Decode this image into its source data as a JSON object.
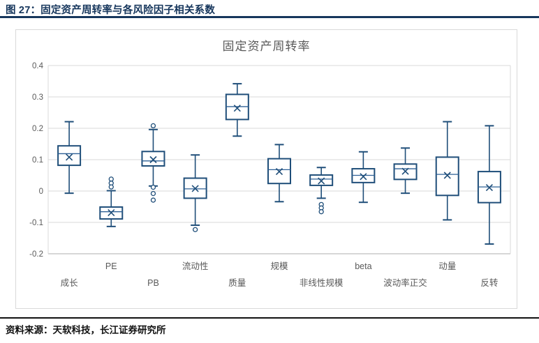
{
  "header": {
    "title": "图 27：固定资产周转率与各风险因子相关系数"
  },
  "footer": {
    "source_label": "资料来源：",
    "source_text": "天软科技，长江证券研究所"
  },
  "chart_data": {
    "type": "boxplot",
    "title": "固定资产周转率",
    "categories": [
      "成长",
      "PE",
      "PB",
      "流动性",
      "质量",
      "规模",
      "非线性规模",
      "beta",
      "波动率正交",
      "动量",
      "反转"
    ],
    "ylim": [
      -0.2,
      0.4
    ],
    "yticks": [
      "0.4",
      "0.3",
      "0.2",
      "0.1",
      "0",
      "-0.1",
      "-0.2"
    ],
    "ytick_values": [
      0.4,
      0.3,
      0.2,
      0.1,
      0,
      -0.1,
      -0.2
    ],
    "grid": "horizontal",
    "legend": "none",
    "boxes": [
      {
        "category": "成长",
        "label_row": 2,
        "low": -0.007,
        "q1": 0.082,
        "median": 0.119,
        "q3": 0.144,
        "high": 0.221,
        "mean": 0.108,
        "outliers": []
      },
      {
        "category": "PE",
        "label_row": 1,
        "low": -0.113,
        "q1": -0.089,
        "median": -0.066,
        "q3": -0.051,
        "high": 0.001,
        "mean": -0.069,
        "outliers": [
          0.038,
          0.025,
          0.013
        ]
      },
      {
        "category": "PB",
        "label_row": 2,
        "low": 0.016,
        "q1": 0.08,
        "median": 0.096,
        "q3": 0.126,
        "high": 0.196,
        "mean": 0.1,
        "outliers": [
          0.208,
          0.012,
          -0.008,
          -0.029
        ]
      },
      {
        "category": "流动性",
        "label_row": 1,
        "low": -0.109,
        "q1": -0.023,
        "median": 0.007,
        "q3": 0.041,
        "high": 0.115,
        "mean": 0.008,
        "outliers": [
          -0.123
        ]
      },
      {
        "category": "质量",
        "label_row": 2,
        "low": 0.175,
        "q1": 0.228,
        "median": 0.269,
        "q3": 0.308,
        "high": 0.342,
        "mean": 0.264,
        "outliers": []
      },
      {
        "category": "规模",
        "label_row": 1,
        "low": -0.034,
        "q1": 0.024,
        "median": 0.068,
        "q3": 0.103,
        "high": 0.148,
        "mean": 0.062,
        "outliers": []
      },
      {
        "category": "非线性规模",
        "label_row": 2,
        "low": -0.023,
        "q1": 0.018,
        "median": 0.038,
        "q3": 0.051,
        "high": 0.075,
        "mean": 0.032,
        "outliers": [
          -0.043,
          -0.054,
          -0.066
        ]
      },
      {
        "category": "beta",
        "label_row": 1,
        "low": -0.036,
        "q1": 0.027,
        "median": 0.05,
        "q3": 0.071,
        "high": 0.125,
        "mean": 0.046,
        "outliers": []
      },
      {
        "category": "波动率正交",
        "label_row": 2,
        "low": -0.007,
        "q1": 0.037,
        "median": 0.071,
        "q3": 0.086,
        "high": 0.137,
        "mean": 0.063,
        "outliers": []
      },
      {
        "category": "动量",
        "label_row": 1,
        "low": -0.092,
        "q1": -0.014,
        "median": 0.053,
        "q3": 0.108,
        "high": 0.221,
        "mean": 0.05,
        "outliers": []
      },
      {
        "category": "反转",
        "label_row": 2,
        "low": -0.169,
        "q1": -0.037,
        "median": 0.013,
        "q3": 0.062,
        "high": 0.208,
        "mean": 0.011,
        "outliers": []
      }
    ],
    "colors": {
      "box_stroke": "#1F4E79",
      "median_stroke": "#2E6096",
      "grid": "#D9D9D9",
      "axis_line": "#BFBFBF",
      "axis_text": "#595959",
      "title_text": "#595959",
      "caption_navy": "#16365C"
    }
  }
}
